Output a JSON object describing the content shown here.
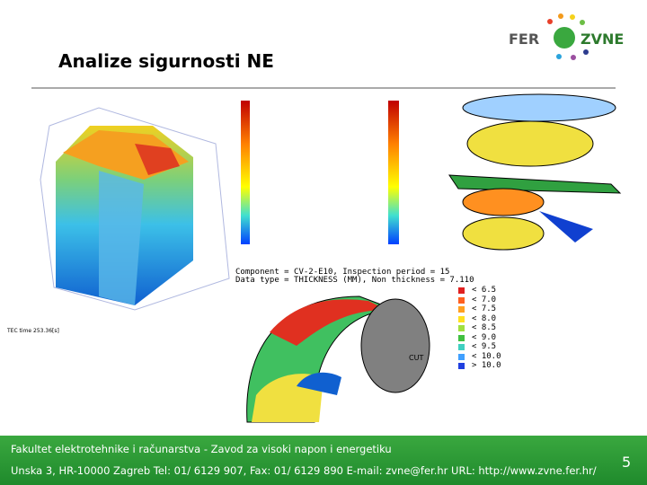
{
  "header": {
    "title": "Analize sigurnosti NE",
    "logo": [
      "FER",
      "ZVNE"
    ]
  },
  "figures": {
    "cylinder": {
      "time": "TEC  time 253.36[s]"
    },
    "elbow": {
      "caption_lines": [
        "Component = CV-2-E10,  Inspection period = 15",
        "Data type = THICKNESS (MM),  Non thickness =  7.110"
      ],
      "legend": [
        "< 6.5",
        "< 7.0",
        "< 7.5",
        "< 8.0",
        "< 8.5",
        "< 9.0",
        "< 9.5",
        "< 10.0",
        "> 10.0"
      ],
      "cut": "CUT"
    }
  },
  "footer": {
    "line1": "Fakultet elektrotehnike i računarstva - Zavod za visoki napon i energetiku",
    "line2": "Unska 3, HR-10000 Zagreb  Tel: 01/ 6129 907, Fax: 01/ 6129 890  E-mail: zvne@fer.hr  URL: http://www.zvne.fer.hr/",
    "page": "5"
  }
}
